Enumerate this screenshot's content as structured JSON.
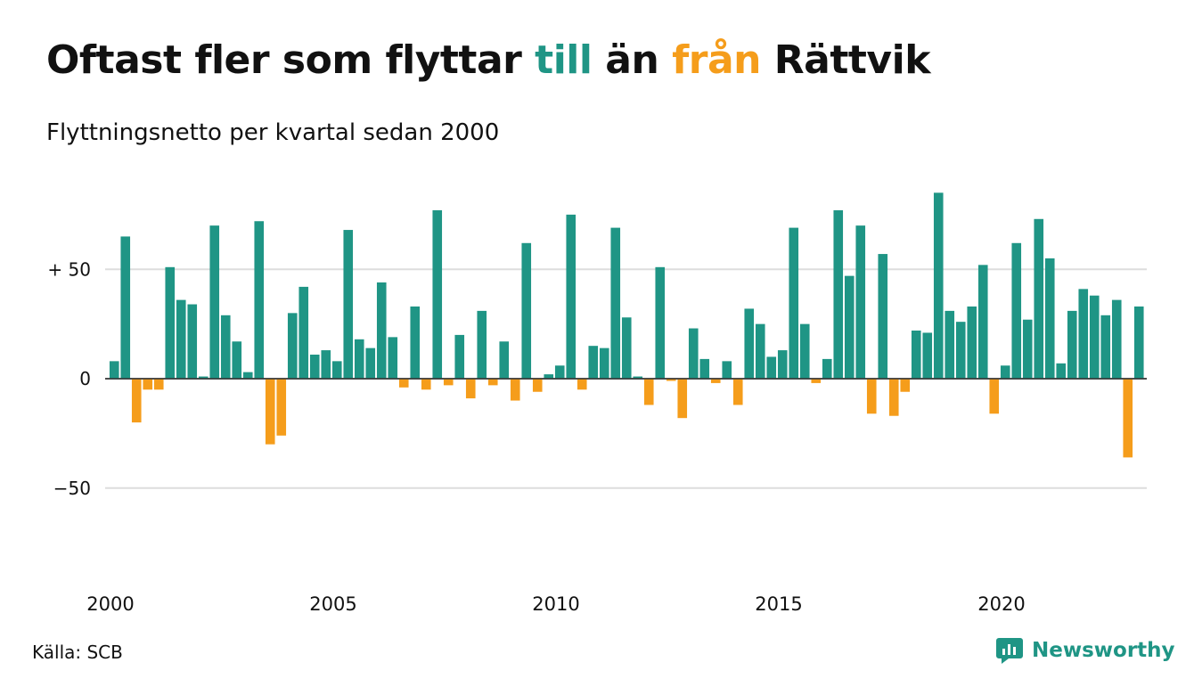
{
  "title": {
    "before": "Oftast fler som flyttar ",
    "pos_word": "till",
    "middle": " än ",
    "neg_word": "från",
    "after": " Rättvik"
  },
  "subtitle": "Flyttningsnetto per kvartal sedan 2000",
  "source": "Källa: SCB",
  "brand": {
    "name": "Newsworthy",
    "icon": "newsworthy-logo-icon"
  },
  "colors": {
    "positive": "#1f9585",
    "negative": "#f59d1b",
    "grid": "#dddddd",
    "axis": "#333333"
  },
  "chart_data": {
    "type": "bar",
    "x_start": "2000 Q1",
    "ylim": [
      -70,
      85
    ],
    "y_ticks": [
      {
        "value": 50,
        "label": "+ 50"
      },
      {
        "value": 0,
        "label": "0"
      },
      {
        "value": -50,
        "label": "−50"
      }
    ],
    "x_ticks": [
      "2000",
      "2005",
      "2010",
      "2015",
      "2020"
    ],
    "grid": true,
    "values": [
      8,
      65,
      -20,
      -5,
      -5,
      51,
      36,
      34,
      1,
      70,
      29,
      17,
      3,
      72,
      -30,
      -26,
      30,
      42,
      11,
      13,
      8,
      68,
      18,
      14,
      44,
      19,
      -4,
      33,
      -5,
      77,
      -3,
      20,
      -9,
      31,
      -3,
      17,
      -10,
      62,
      -6,
      2,
      6,
      75,
      -5,
      15,
      14,
      69,
      28,
      1,
      -12,
      51,
      -1,
      -18,
      23,
      9,
      -2,
      8,
      -12,
      32,
      25,
      10,
      13,
      69,
      25,
      -2,
      9,
      77,
      47,
      70,
      -16,
      57,
      -17,
      -6,
      22,
      21,
      85,
      31,
      26,
      33,
      52,
      -16,
      6,
      62,
      27,
      73,
      55,
      7,
      31,
      41,
      38,
      29,
      36,
      -36,
      33
    ]
  }
}
